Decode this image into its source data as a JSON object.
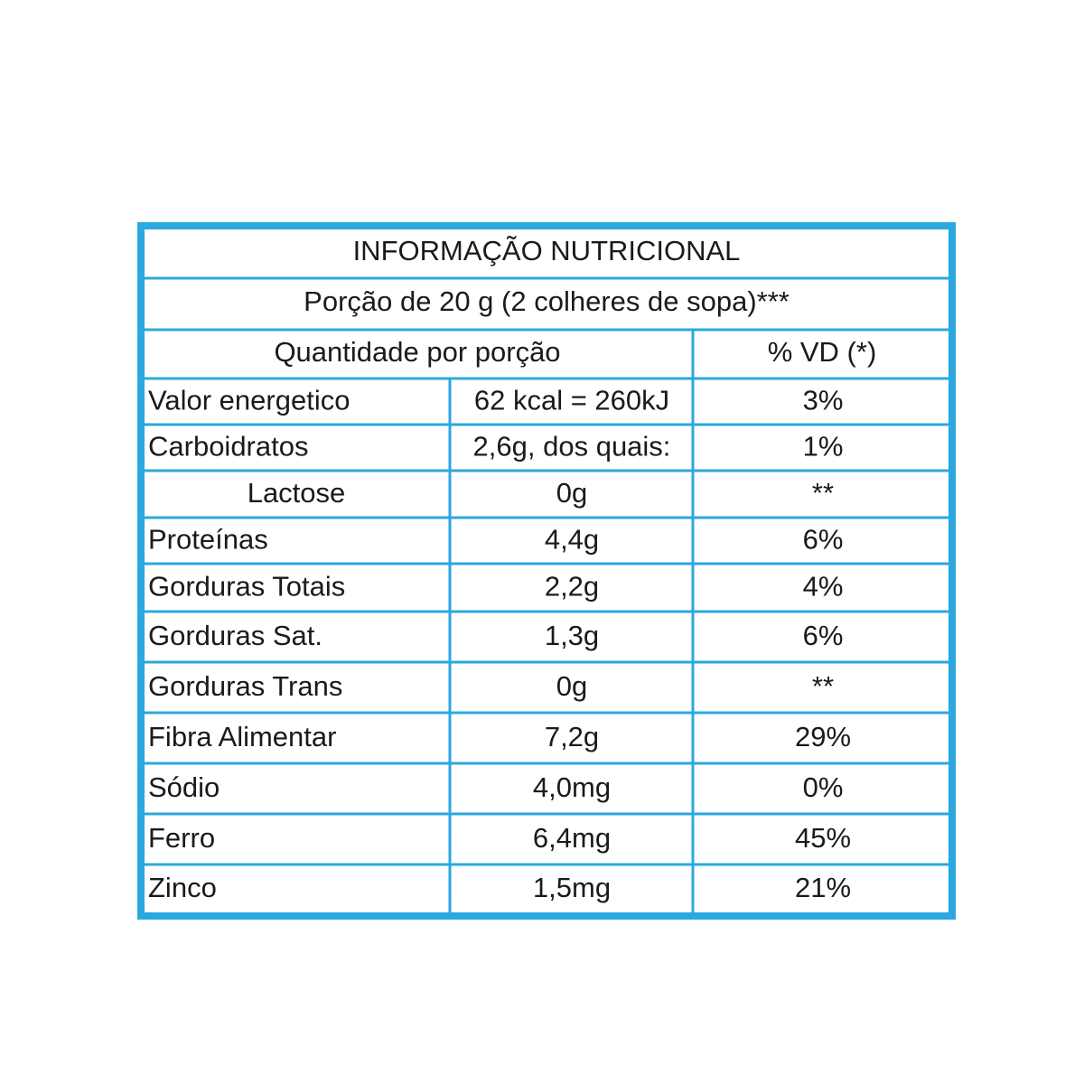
{
  "header": {
    "title": "INFORMAÇÃO NUTRICIONAL",
    "portion": "Porção de 20 g (2 colheres de sopa)***"
  },
  "table": {
    "columns": [
      "Quantidade por porção",
      "% VD (*)"
    ],
    "rows": [
      [
        "Valor energetico",
        "62 kcal = 260kJ",
        "3%"
      ],
      [
        "Carboidratos",
        "2,6g, dos quais:",
        "1%"
      ],
      [
        "Lactose",
        "0g",
        "**"
      ],
      [
        "Proteínas",
        "4,4g",
        "6%"
      ],
      [
        "Gorduras Totais",
        "2,2g",
        "4%"
      ],
      [
        "Gorduras Sat.",
        "1,3g",
        "6%"
      ],
      [
        "Gorduras Trans",
        "0g",
        "**"
      ],
      [
        "Fibra Alimentar",
        "7,2g",
        "29%"
      ],
      [
        "Sódio",
        "4,0mg",
        "0%"
      ],
      [
        "Ferro",
        "6,4mg",
        "45%"
      ],
      [
        "Zinco",
        "1,5mg",
        "21%"
      ]
    ]
  }
}
